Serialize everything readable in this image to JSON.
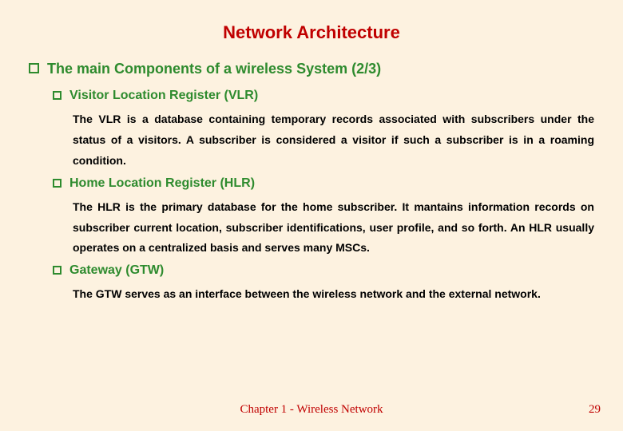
{
  "colors": {
    "background": "#fdf2e0",
    "title": "#c00000",
    "heading": "#2e8b2e",
    "body": "#000000",
    "bullet_border": "#2e8b2e",
    "footer": "#c00000"
  },
  "fonts": {
    "main": "Arial",
    "footer": "Times New Roman",
    "title_size": 22,
    "l1_size": 18,
    "l2_size": 16,
    "body_size": 14,
    "footer_size": 15
  },
  "title": "Network Architecture",
  "main_heading": "The main Components of a wireless System (2/3)",
  "sections": [
    {
      "heading": "Visitor Location Register (VLR)",
      "body": "The VLR is a database containing temporary records associated with subscribers under the status of a visitors. A subscriber is considered a visitor if such a subscriber is in a roaming condition."
    },
    {
      "heading": "Home Location Register (HLR)",
      "body": "The HLR is the primary database for the home subscriber. It mantains information records on subscriber current location, subscriber identifications, user profile, and so forth. An HLR usually operates on a centralized basis and serves many MSCs."
    },
    {
      "heading": "Gateway (GTW)",
      "body": "The GTW serves as an interface between the wireless network and the external network."
    }
  ],
  "footer": "Chapter 1 - Wireless Network",
  "page_number": "29"
}
